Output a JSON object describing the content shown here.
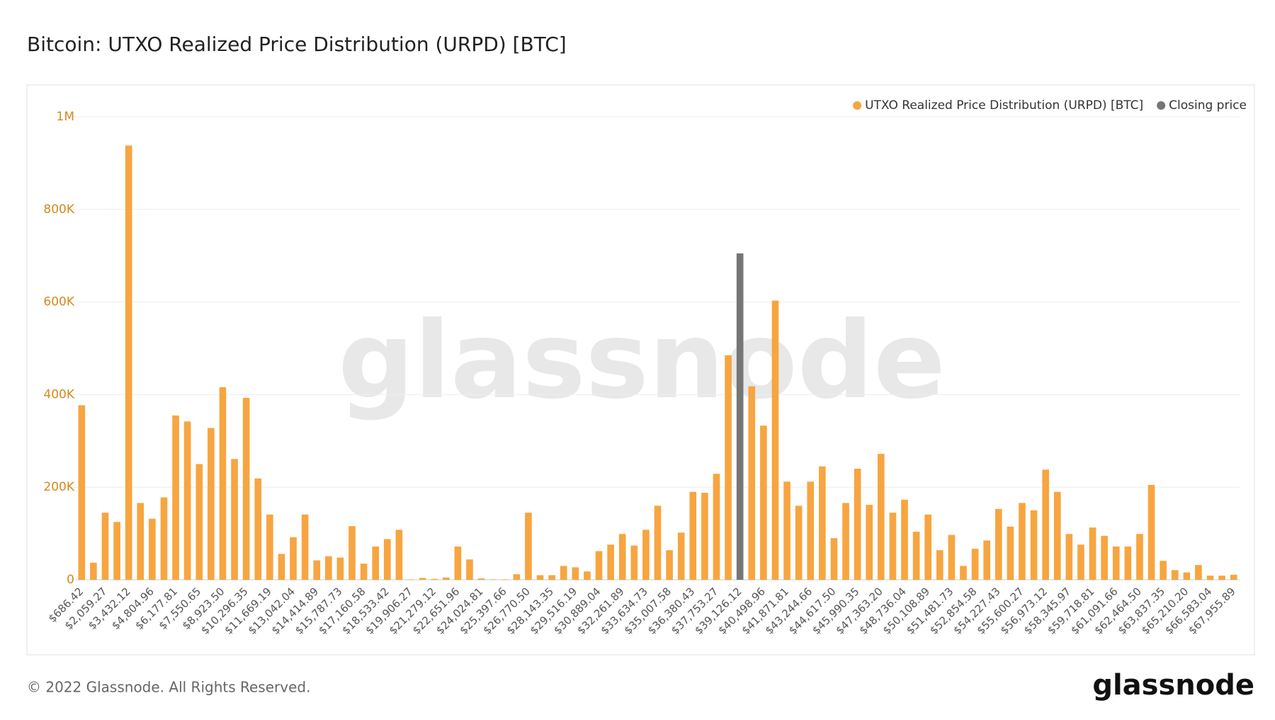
{
  "chart_data": {
    "type": "bar",
    "title": "Bitcoin: UTXO Realized Price Distribution (URPD) [BTC]",
    "categories": [
      "$686.42",
      null,
      "$2,059.27",
      null,
      "$3,432.12",
      null,
      "$4,804.96",
      null,
      "$6,177.81",
      null,
      "$7,550.65",
      null,
      "$8,923.50",
      null,
      "$10,296.35",
      null,
      "$11,669.19",
      null,
      "$13,042.04",
      null,
      "$14,414.89",
      null,
      "$15,787.73",
      null,
      "$17,160.58",
      null,
      "$18,533.42",
      null,
      "$19,906.27",
      null,
      "$21,279.12",
      null,
      "$22,651.96",
      null,
      "$24,024.81",
      null,
      "$25,397.66",
      null,
      "$26,770.50",
      null,
      "$28,143.35",
      null,
      "$29,516.19",
      null,
      "$30,889.04",
      null,
      "$32,261.89",
      null,
      "$33,634.73",
      null,
      "$35,007.58",
      null,
      "$36,380.43",
      null,
      "$37,753.27",
      null,
      "$39,126.12",
      null,
      "$40,498.96",
      null,
      "$41,871.81",
      null,
      "$43,244.66",
      null,
      "$44,617.50",
      null,
      "$45,990.35",
      null,
      "$47,363.20",
      null,
      "$48,736.04",
      null,
      "$50,108.89",
      null,
      "$51,481.73",
      null,
      "$52,854.58",
      null,
      "$54,227.43",
      null,
      "$55,600.27",
      null,
      "$56,973.12",
      null,
      "$58,345.97",
      null,
      "$59,718.81",
      null,
      "$61,091.66",
      null,
      "$62,464.50",
      null,
      "$63,837.35",
      null,
      "$65,210.20",
      null,
      "$66,583.04",
      null,
      "$67,955.89"
    ],
    "series": [
      {
        "name": "UTXO Realized Price Distribution (URPD) [BTC]",
        "color": "#f7a540",
        "values": [
          377000,
          37000,
          145000,
          125000,
          938000,
          166000,
          132000,
          178000,
          355000,
          342000,
          250000,
          328000,
          416000,
          261000,
          393000,
          219000,
          141000,
          56000,
          92000,
          141000,
          42000,
          51000,
          48000,
          116000,
          35000,
          72000,
          88000,
          108000,
          1000,
          4000,
          2000,
          5000,
          72000,
          44000,
          3000,
          1000,
          1000,
          12000,
          145000,
          10000,
          10000,
          30000,
          27000,
          18000,
          62000,
          76000,
          99000,
          74000,
          108000,
          160000,
          64000,
          102000,
          190000,
          188000,
          229000,
          485000,
          null,
          418000,
          333000,
          603000,
          212000,
          160000,
          212000,
          245000,
          90000,
          166000,
          240000,
          162000,
          272000,
          145000,
          173000,
          104000,
          141000,
          64000,
          97000,
          30000,
          67000,
          85000,
          153000,
          115000,
          166000,
          150000,
          238000,
          190000,
          99000,
          76000,
          113000,
          95000,
          72000,
          72000,
          99000,
          205000,
          41000,
          21000,
          16000,
          32000,
          9000,
          9000,
          11000
        ]
      },
      {
        "name": "Closing price",
        "color": "#767676",
        "values": [
          null,
          null,
          null,
          null,
          null,
          null,
          null,
          null,
          null,
          null,
          null,
          null,
          null,
          null,
          null,
          null,
          null,
          null,
          null,
          null,
          null,
          null,
          null,
          null,
          null,
          null,
          null,
          null,
          null,
          null,
          null,
          null,
          null,
          null,
          null,
          null,
          null,
          null,
          null,
          null,
          null,
          null,
          null,
          null,
          null,
          null,
          null,
          null,
          null,
          null,
          null,
          null,
          null,
          null,
          null,
          null,
          705000,
          null,
          null,
          null,
          null,
          null,
          null,
          null,
          null,
          null,
          null,
          null,
          null,
          null,
          null,
          null,
          null,
          null,
          null,
          null,
          null,
          null,
          null,
          null,
          null,
          null,
          null,
          null,
          null,
          null,
          null,
          null,
          null,
          null,
          null,
          null,
          null,
          null,
          null,
          null,
          null,
          null,
          null
        ]
      }
    ],
    "ylim": [
      0,
      1000000
    ],
    "yticks": [
      0,
      {
        "value": 200000,
        "label": "200K"
      },
      {
        "value": 400000,
        "label": "400K"
      },
      {
        "value": 600000,
        "label": "600K"
      },
      {
        "value": 800000,
        "label": "800K"
      },
      {
        "value": 1000000,
        "label": "1M"
      }
    ],
    "grid": true,
    "legend": "top-right"
  },
  "watermark": "glassnode",
  "footer": {
    "copyright": "© 2022 Glassnode. All Rights Reserved.",
    "brand": "glassnode"
  }
}
